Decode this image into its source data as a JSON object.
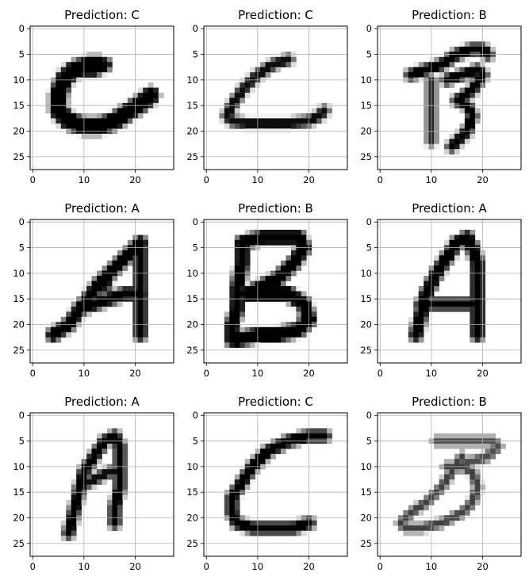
{
  "chart_data": {
    "type": "image_grid",
    "grid": {
      "rows": 3,
      "cols": 3,
      "show_grid": true
    },
    "image_size": 28,
    "colormap": "gray_r",
    "x_ticks": [
      0,
      10,
      20
    ],
    "y_ticks": [
      0,
      5,
      10,
      15,
      20,
      25
    ],
    "panels": [
      {
        "title": "Prediction: C",
        "strokes": [
          {
            "pts": [
              [
                13,
                7
              ],
              [
                11,
                7
              ],
              [
                8,
                8
              ],
              [
                6,
                10
              ],
              [
                5,
                13
              ],
              [
                5,
                16
              ],
              [
                7,
                18
              ],
              [
                10,
                19
              ],
              [
                13,
                19
              ],
              [
                16,
                18
              ],
              [
                19,
                16
              ],
              [
                22,
                14
              ],
              [
                23,
                13
              ]
            ],
            "w": 2.3,
            "ink": 1.0
          },
          {
            "pts": [
              [
                10,
                8
              ],
              [
                12,
                8
              ],
              [
                14,
                7
              ]
            ],
            "w": 1.6,
            "ink": 1.0
          }
        ]
      },
      {
        "title": "Prediction: C",
        "strokes": [
          {
            "pts": [
              [
                16,
                6
              ],
              [
                13,
                7
              ],
              [
                10,
                9
              ],
              [
                7,
                12
              ],
              [
                5,
                15
              ],
              [
                4,
                17
              ],
              [
                5,
                18
              ],
              [
                8,
                18.5
              ],
              [
                12,
                18.5
              ],
              [
                16,
                18.5
              ],
              [
                20,
                18
              ],
              [
                22,
                17
              ],
              [
                23,
                16
              ]
            ],
            "w": 1.0,
            "ink": 0.95
          }
        ]
      },
      {
        "title": "Prediction: B",
        "strokes": [
          {
            "pts": [
              [
                6,
                9
              ],
              [
                9,
                8
              ],
              [
                12,
                7
              ],
              [
                15,
                5
              ],
              [
                18,
                4
              ],
              [
                20,
                4
              ],
              [
                21,
                5
              ]
            ],
            "w": 1.2,
            "ink": 1.0
          },
          {
            "pts": [
              [
                10,
                10
              ],
              [
                10,
                13
              ],
              [
                10,
                16
              ],
              [
                10,
                19
              ],
              [
                10,
                22
              ]
            ],
            "w": 0.9,
            "ink": 0.85
          },
          {
            "pts": [
              [
                13,
                10
              ],
              [
                16,
                9
              ],
              [
                19,
                8
              ],
              [
                20,
                9
              ],
              [
                18,
                12
              ],
              [
                15,
                14
              ],
              [
                17,
                15
              ],
              [
                18,
                17
              ],
              [
                17,
                20
              ],
              [
                15,
                22
              ],
              [
                14,
                23
              ]
            ],
            "w": 1.1,
            "ink": 1.0
          }
        ]
      },
      {
        "title": "Prediction: A",
        "strokes": [
          {
            "pts": [
              [
                4,
                22
              ],
              [
                7,
                20
              ],
              [
                10,
                16
              ],
              [
                13,
                12
              ],
              [
                16,
                9
              ],
              [
                19,
                6
              ],
              [
                21,
                4
              ]
            ],
            "w": 1.6,
            "ink": 1.0
          },
          {
            "pts": [
              [
                21,
                4
              ],
              [
                21,
                8
              ],
              [
                21,
                13
              ],
              [
                21,
                18
              ],
              [
                21,
                22
              ]
            ],
            "w": 1.4,
            "ink": 1.0
          },
          {
            "pts": [
              [
                9,
                17
              ],
              [
                12,
                16
              ],
              [
                15,
                15
              ],
              [
                18,
                14
              ],
              [
                21,
                14
              ]
            ],
            "w": 1.5,
            "ink": 1.0
          },
          {
            "pts": [
              [
                14,
                13
              ],
              [
                15,
                10
              ],
              [
                17,
                8
              ]
            ],
            "w": 1.2,
            "ink": 0.9
          }
        ]
      },
      {
        "title": "Prediction: B",
        "strokes": [
          {
            "pts": [
              [
                7,
                4
              ],
              [
                7,
                8
              ],
              [
                6,
                13
              ],
              [
                6,
                17
              ],
              [
                5,
                20
              ],
              [
                5,
                23
              ]
            ],
            "w": 1.6,
            "ink": 1.0
          },
          {
            "pts": [
              [
                7,
                4
              ],
              [
                11,
                3
              ],
              [
                15,
                3
              ],
              [
                18,
                3
              ],
              [
                19,
                5
              ],
              [
                17,
                8
              ],
              [
                14,
                11
              ],
              [
                10,
                13
              ],
              [
                8,
                14
              ]
            ],
            "w": 1.7,
            "ink": 1.0
          },
          {
            "pts": [
              [
                8,
                14
              ],
              [
                12,
                14
              ],
              [
                16,
                14
              ],
              [
                19,
                16
              ],
              [
                20,
                19
              ],
              [
                18,
                21
              ],
              [
                14,
                22
              ],
              [
                10,
                22
              ],
              [
                6,
                23
              ]
            ],
            "w": 1.8,
            "ink": 1.0
          }
        ]
      },
      {
        "title": "Prediction: A",
        "strokes": [
          {
            "pts": [
              [
                7,
                22
              ],
              [
                8,
                18
              ],
              [
                9,
                14
              ],
              [
                11,
                10
              ],
              [
                13,
                7
              ],
              [
                15,
                4
              ],
              [
                17,
                3
              ],
              [
                18,
                5
              ],
              [
                19,
                8
              ],
              [
                19,
                11
              ],
              [
                19,
                15
              ],
              [
                19,
                19
              ],
              [
                19,
                22
              ]
            ],
            "w": 1.5,
            "ink": 1.0
          },
          {
            "pts": [
              [
                8,
                16
              ],
              [
                11,
                16
              ],
              [
                14,
                16
              ],
              [
                17,
                16
              ],
              [
                19,
                16
              ]
            ],
            "w": 1.3,
            "ink": 1.0
          }
        ]
      },
      {
        "title": "Prediction: A",
        "strokes": [
          {
            "pts": [
              [
                7,
                23
              ],
              [
                8,
                19
              ],
              [
                9,
                15
              ],
              [
                10,
                11
              ],
              [
                12,
                8
              ],
              [
                14,
                5
              ],
              [
                16,
                4
              ],
              [
                17,
                6
              ],
              [
                17,
                10
              ],
              [
                17,
                14
              ],
              [
                16,
                18
              ],
              [
                16,
                21
              ]
            ],
            "w": 1.2,
            "ink": 1.0
          },
          {
            "pts": [
              [
                9,
                14
              ],
              [
                11,
                13
              ],
              [
                13,
                12
              ],
              [
                15,
                11
              ],
              [
                17,
                11
              ]
            ],
            "w": 1.0,
            "ink": 0.95
          }
        ]
      },
      {
        "title": "Prediction: C",
        "strokes": [
          {
            "pts": [
              [
                23,
                4
              ],
              [
                20,
                4
              ],
              [
                16,
                5
              ],
              [
                12,
                7
              ],
              [
                9,
                10
              ],
              [
                7,
                13
              ],
              [
                5,
                16
              ],
              [
                5,
                19
              ],
              [
                6,
                21
              ],
              [
                9,
                22
              ],
              [
                13,
                22
              ],
              [
                17,
                22
              ],
              [
                20,
                21
              ]
            ],
            "w": 1.3,
            "ink": 1.0
          }
        ]
      },
      {
        "title": "Prediction: B",
        "strokes": [
          {
            "pts": [
              [
                11,
                5
              ],
              [
                15,
                5
              ],
              [
                19,
                5
              ],
              [
                22,
                5
              ],
              [
                23,
                6
              ],
              [
                21,
                8
              ],
              [
                18,
                9
              ],
              [
                15,
                10
              ],
              [
                13,
                10
              ]
            ],
            "w": 0.8,
            "ink": 0.7
          },
          {
            "pts": [
              [
                13,
                10
              ],
              [
                16,
                10
              ],
              [
                18,
                11
              ],
              [
                19,
                14
              ],
              [
                18,
                17
              ],
              [
                16,
                19
              ],
              [
                12,
                21
              ],
              [
                8,
                22
              ],
              [
                5,
                22
              ],
              [
                4,
                21
              ],
              [
                6,
                19
              ],
              [
                9,
                17
              ],
              [
                12,
                14
              ],
              [
                14,
                11
              ],
              [
                16,
                8
              ]
            ],
            "w": 0.7,
            "ink": 0.75
          }
        ]
      }
    ]
  }
}
